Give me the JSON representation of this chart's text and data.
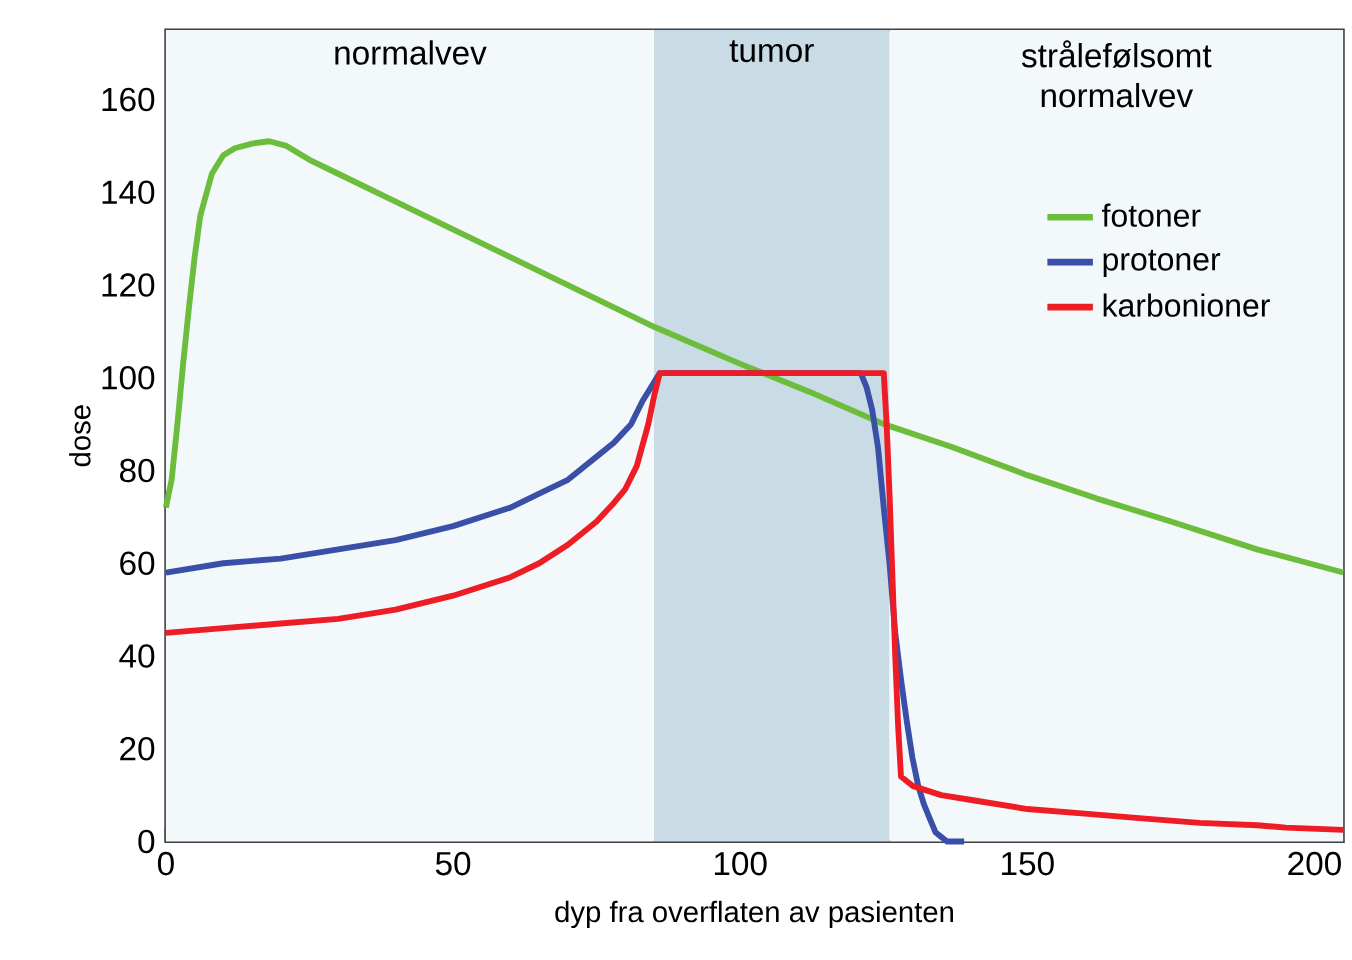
{
  "chart_data": {
    "type": "line",
    "xlabel": "dyp fra overflaten av pasienten",
    "ylabel": "dose",
    "xlim": [
      0,
      205
    ],
    "ylim": [
      0,
      175
    ],
    "xticks": [
      0,
      50,
      100,
      150,
      200
    ],
    "yticks": [
      0,
      20,
      40,
      60,
      80,
      100,
      120,
      140,
      160
    ],
    "grid": false,
    "legend": "top right",
    "bands": [
      {
        "axis": "x",
        "from": 0,
        "to": 85,
        "label": "normalvev",
        "color": "#f3f8fb"
      },
      {
        "axis": "x",
        "from": 85,
        "to": 126,
        "label": "tumor",
        "color": "#c9dbe4"
      },
      {
        "axis": "x",
        "from": 126,
        "to": 205,
        "label": "strålefølsomt normalvev",
        "color": "#f3f8fb"
      }
    ],
    "series": [
      {
        "name": "fotoner",
        "color": "#6cbd3c",
        "x": [
          0,
          1,
          2,
          3,
          4,
          5,
          6,
          8,
          10,
          12,
          15,
          18,
          21,
          25,
          30,
          40,
          50,
          60,
          70,
          85,
          100,
          112,
          125,
          137,
          150,
          162,
          175,
          190,
          205
        ],
        "values": [
          72,
          78,
          90,
          103,
          115,
          126,
          135,
          144,
          148,
          149.5,
          150.5,
          151,
          150,
          147,
          144,
          138,
          132,
          126,
          120,
          111,
          103,
          97,
          90,
          85,
          79,
          74,
          69,
          63,
          58
        ]
      },
      {
        "name": "protoner",
        "color": "#3a4fa8",
        "x": [
          0,
          10,
          20,
          30,
          40,
          50,
          60,
          65,
          70,
          75,
          78,
          81,
          83,
          85,
          86,
          121,
          122,
          123,
          124,
          125,
          126,
          127,
          128,
          129,
          130,
          131,
          132,
          133,
          134,
          135,
          136,
          139
        ],
        "values": [
          58,
          60,
          61,
          63,
          65,
          68,
          72,
          75,
          78,
          83,
          86,
          90,
          95,
          99,
          101,
          101,
          98,
          93,
          85,
          72,
          60,
          45,
          35,
          26,
          18,
          12,
          8,
          5,
          2,
          1,
          0,
          0
        ]
      },
      {
        "name": "karbonioner",
        "color": "#ee1c25",
        "x": [
          0,
          10,
          20,
          30,
          40,
          50,
          60,
          65,
          70,
          75,
          78,
          80,
          82,
          84,
          85,
          86,
          100,
          125,
          125.5,
          126,
          127,
          127.5,
          128,
          130,
          135,
          140,
          150,
          160,
          170,
          180,
          190,
          195,
          205
        ],
        "values": [
          45,
          46,
          47,
          48,
          50,
          53,
          57,
          60,
          64,
          69,
          73,
          76,
          81,
          90,
          96,
          101,
          101,
          101,
          90,
          75,
          40,
          25,
          14,
          12,
          10,
          9,
          7,
          6,
          5,
          4,
          3.5,
          3,
          2.5
        ]
      }
    ]
  }
}
